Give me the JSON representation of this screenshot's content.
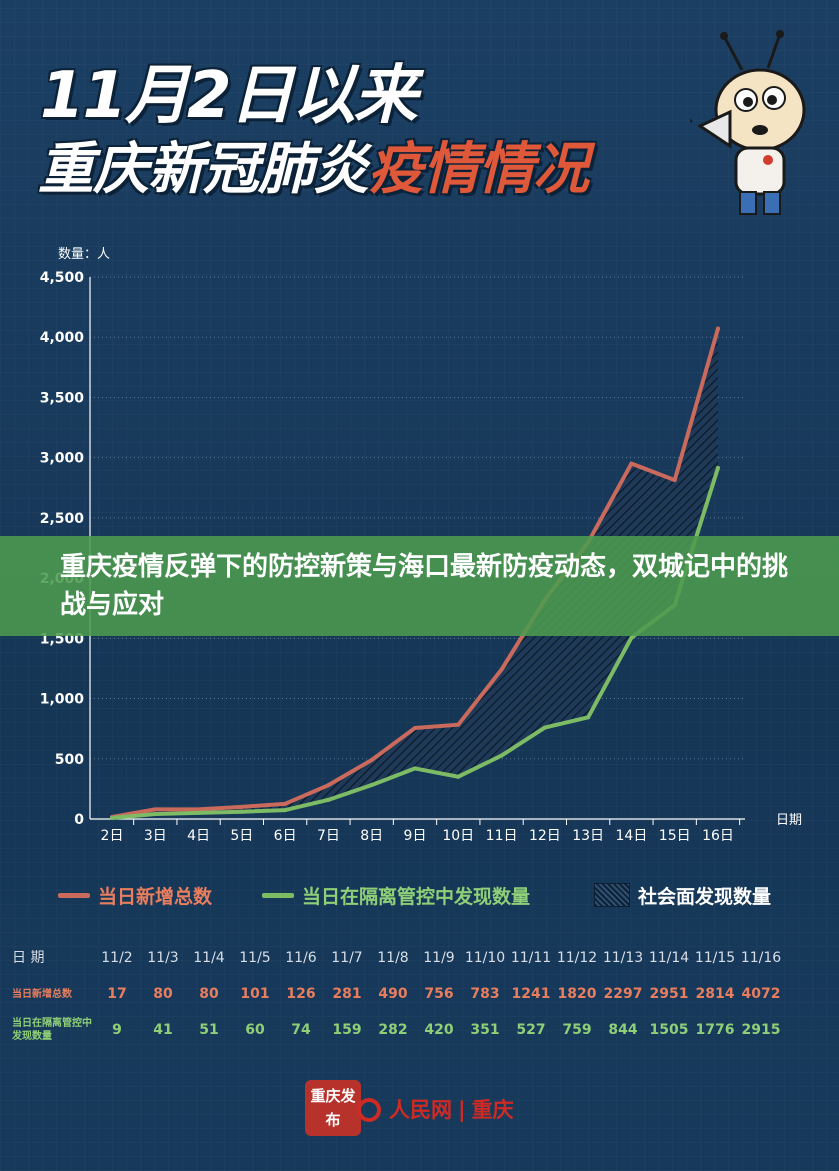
{
  "header": {
    "line1": "11月2日以来",
    "line2_white": "重庆新冠肺炎",
    "line2_red": "疫情情况"
  },
  "overlay_title": "重庆疫情反弹下的防控新策与海口最新防疫动态，双城记中的挑战与应对",
  "colors": {
    "total": "#c96a5c",
    "isolation": "#7dbb64",
    "hatch": "#2b4a6b",
    "grid": "#5d7a98",
    "axis_text": "#ffffff",
    "banner": "#4c9b4e"
  },
  "chart_data": {
    "type": "line",
    "ylabel": "数量：人",
    "xlabel": "日期",
    "ylim": [
      0,
      4500
    ],
    "yticks": [
      "0",
      "500",
      "1,000",
      "1,500",
      "2,000",
      "2,500",
      "3,000",
      "3,500",
      "4,000",
      "4,500"
    ],
    "ytick_values": [
      0,
      500,
      1000,
      1500,
      2000,
      2500,
      3000,
      3500,
      4000,
      4500
    ],
    "categories": [
      "2日",
      "3日",
      "4日",
      "5日",
      "6日",
      "7日",
      "8日",
      "9日",
      "10日",
      "11日",
      "12日",
      "13日",
      "14日",
      "15日",
      "16日"
    ],
    "grid": true,
    "series": [
      {
        "name": "当日新增总数",
        "key": "total",
        "values": [
          17,
          80,
          80,
          101,
          126,
          281,
          490,
          756,
          783,
          1241,
          1820,
          2297,
          2951,
          2814,
          4072
        ]
      },
      {
        "name": "当日在隔离管控中发现数量",
        "key": "isolation",
        "values": [
          9,
          41,
          51,
          60,
          74,
          159,
          282,
          420,
          351,
          527,
          759,
          844,
          1505,
          1776,
          2915
        ]
      }
    ],
    "area_label": "社会面发现数量"
  },
  "table": {
    "header_label": "日 期",
    "dates": [
      "11/2",
      "11/3",
      "11/4",
      "11/5",
      "11/6",
      "11/7",
      "11/8",
      "11/9",
      "11/10",
      "11/11",
      "11/12",
      "11/13",
      "11/14",
      "11/15",
      "11/16"
    ],
    "row1_label": "当日新增总数",
    "row1": [
      "17",
      "80",
      "80",
      "101",
      "126",
      "281",
      "490",
      "756",
      "783",
      "1241",
      "1820",
      "2297",
      "2951",
      "2814",
      "4072"
    ],
    "row2_label": "当日在隔离管控中发现数量",
    "row2": [
      "9",
      "41",
      "51",
      "60",
      "74",
      "159",
      "282",
      "420",
      "351",
      "527",
      "759",
      "844",
      "1505",
      "1776",
      "2915"
    ]
  },
  "footer": {
    "stamp_text": "重庆发布",
    "brand_red": "人民网",
    "brand_city": "重庆"
  }
}
